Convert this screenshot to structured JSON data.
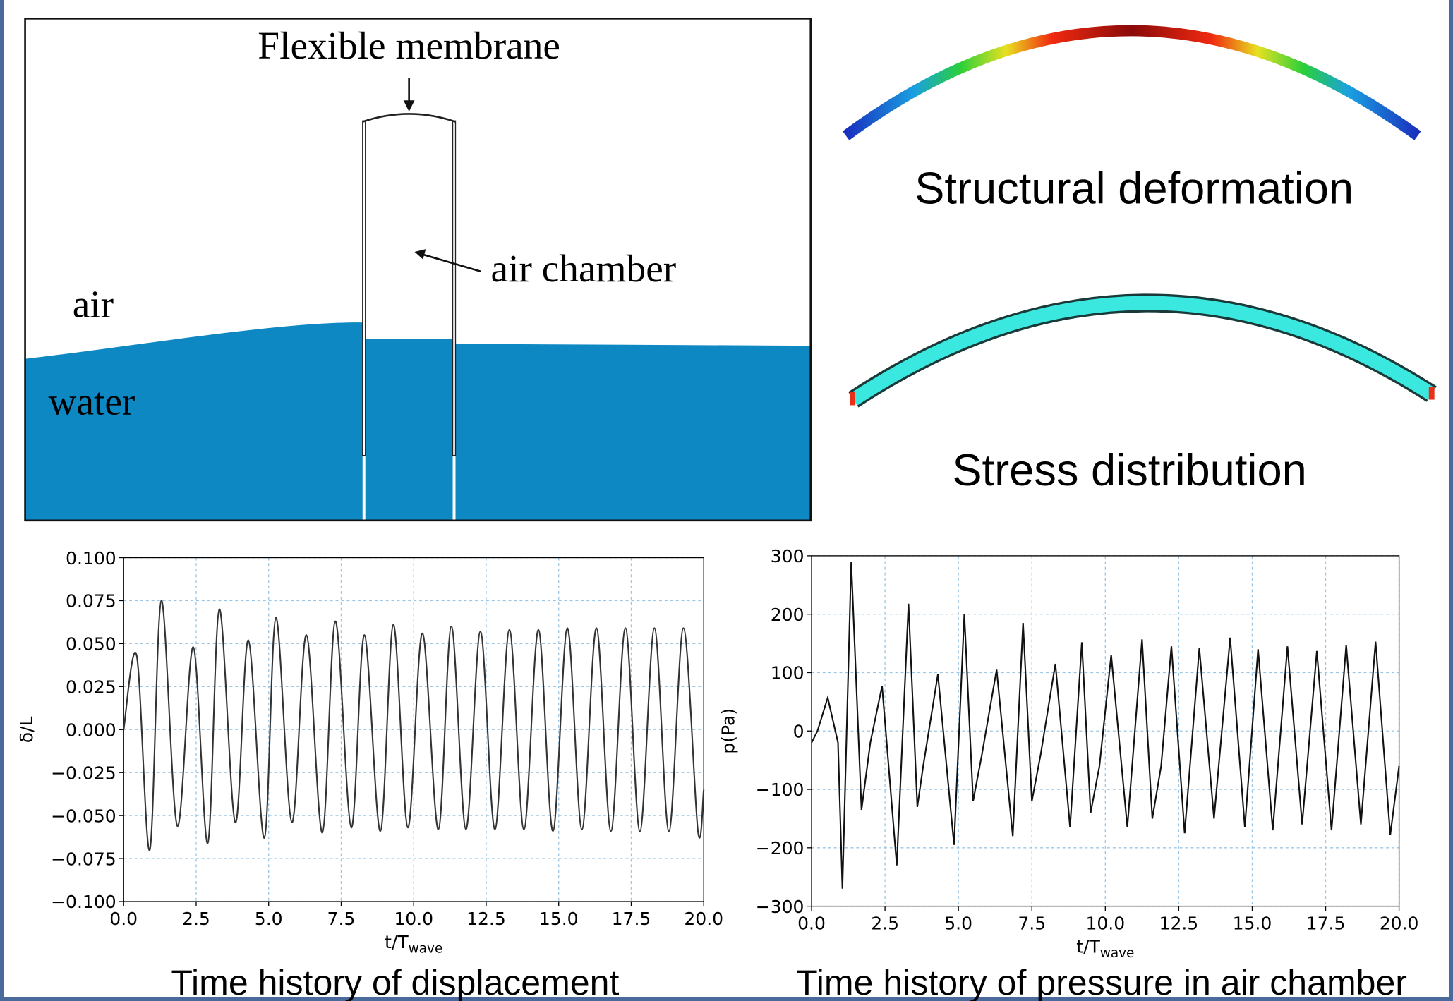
{
  "diagram": {
    "membrane_label": "Flexible membrane",
    "chamber_label": "air chamber",
    "air_label": "air",
    "water_label": "water"
  },
  "panels": {
    "deformation_caption": "Structural deformation",
    "stress_caption": "Stress distribution"
  },
  "chart_data": [
    {
      "type": "line",
      "title": "Time history of displacement",
      "ylabel": "δ/L",
      "xlabel": {
        "text": "t/T",
        "sub": "wave"
      },
      "color": "#333333",
      "curve": "smooth",
      "grid": true,
      "grid_color": "#9cc6e4",
      "xlim": [
        0,
        20
      ],
      "ylim": [
        -0.1,
        0.1
      ],
      "xticks": [
        {
          "value": 0,
          "label": "0.0"
        },
        2.5,
        {
          "value": 5,
          "label": "5.0"
        },
        7.5,
        {
          "value": 10,
          "label": "10.0"
        },
        12.5,
        {
          "value": 15,
          "label": "15.0"
        },
        17.5,
        {
          "value": 20,
          "label": "20.0"
        }
      ],
      "yticks": [
        {
          "value": -0.1,
          "label": "−0.100"
        },
        {
          "value": -0.075,
          "label": "−0.075"
        },
        {
          "value": -0.05,
          "label": "−0.050"
        },
        {
          "value": -0.025,
          "label": "−0.025"
        },
        {
          "value": 0,
          "label": "0.000"
        },
        {
          "value": 0.025,
          "label": "0.025"
        },
        {
          "value": 0.05,
          "label": "0.050"
        },
        {
          "value": 0.075,
          "label": "0.075"
        },
        {
          "value": 0.1,
          "label": "0.100"
        }
      ],
      "x": [
        0,
        0.45,
        0.9,
        1.3,
        1.85,
        2.4,
        2.9,
        3.3,
        3.85,
        4.3,
        4.85,
        5.25,
        5.8,
        6.3,
        6.85,
        7.3,
        7.85,
        8.3,
        8.85,
        9.3,
        9.8,
        10.3,
        10.85,
        11.3,
        11.8,
        12.3,
        12.8,
        13.3,
        13.8,
        14.3,
        14.8,
        15.3,
        15.8,
        16.3,
        16.8,
        17.3,
        17.8,
        18.3,
        18.8,
        19.3,
        19.8,
        20
      ],
      "values": [
        0,
        0.043,
        -0.07,
        0.075,
        -0.056,
        0.048,
        -0.066,
        0.07,
        -0.054,
        0.052,
        -0.063,
        0.065,
        -0.054,
        0.055,
        -0.06,
        0.063,
        -0.057,
        0.055,
        -0.059,
        0.061,
        -0.057,
        0.056,
        -0.058,
        0.06,
        -0.058,
        0.057,
        -0.058,
        0.058,
        -0.058,
        0.058,
        -0.059,
        0.059,
        -0.058,
        0.059,
        -0.059,
        0.059,
        -0.059,
        0.059,
        -0.059,
        0.059,
        -0.059,
        -0.035
      ]
    },
    {
      "type": "line",
      "title": "Time history of pressure in air chamber",
      "ylabel": "p(Pa)",
      "xlabel": {
        "text": "t/T",
        "sub": "wave"
      },
      "color": "#111111",
      "curve": "linear",
      "grid": true,
      "grid_color": "#9cc6e4",
      "xlim": [
        0,
        20
      ],
      "ylim": [
        -300,
        300
      ],
      "xticks": [
        {
          "value": 0,
          "label": "0.0"
        },
        2.5,
        {
          "value": 5,
          "label": "5.0"
        },
        7.5,
        {
          "value": 10,
          "label": "10.0"
        },
        12.5,
        {
          "value": 15,
          "label": "15.0"
        },
        17.5,
        {
          "value": 20,
          "label": "20.0"
        }
      ],
      "yticks": [
        {
          "value": -300,
          "label": "−300"
        },
        {
          "value": -200,
          "label": "−200"
        },
        {
          "value": -100,
          "label": "−100"
        },
        0,
        100,
        200,
        300
      ],
      "x": [
        0,
        0.2,
        0.55,
        0.9,
        1.05,
        1.35,
        1.7,
        2.0,
        2.4,
        2.9,
        3.3,
        3.6,
        3.8,
        4.3,
        4.85,
        5.2,
        5.5,
        5.8,
        6.3,
        6.85,
        7.2,
        7.5,
        7.8,
        8.3,
        8.8,
        9.2,
        9.5,
        9.8,
        10.2,
        10.75,
        11.25,
        11.6,
        11.9,
        12.25,
        12.7,
        13.2,
        13.7,
        14.25,
        14.75,
        15.2,
        15.7,
        16.2,
        16.7,
        17.2,
        17.7,
        18.2,
        18.7,
        19.2,
        19.7,
        20
      ],
      "values": [
        -20,
        0,
        57,
        -20,
        -270,
        290,
        -135,
        -20,
        77,
        -230,
        218,
        -130,
        -60,
        97,
        -195,
        200,
        -120,
        -40,
        105,
        -180,
        185,
        -120,
        -40,
        115,
        -165,
        152,
        -140,
        -60,
        130,
        -165,
        157,
        -150,
        -60,
        145,
        -175,
        142,
        -150,
        160,
        -165,
        140,
        -170,
        145,
        -160,
        137,
        -170,
        147,
        -160,
        153,
        -178,
        -60
      ]
    }
  ]
}
